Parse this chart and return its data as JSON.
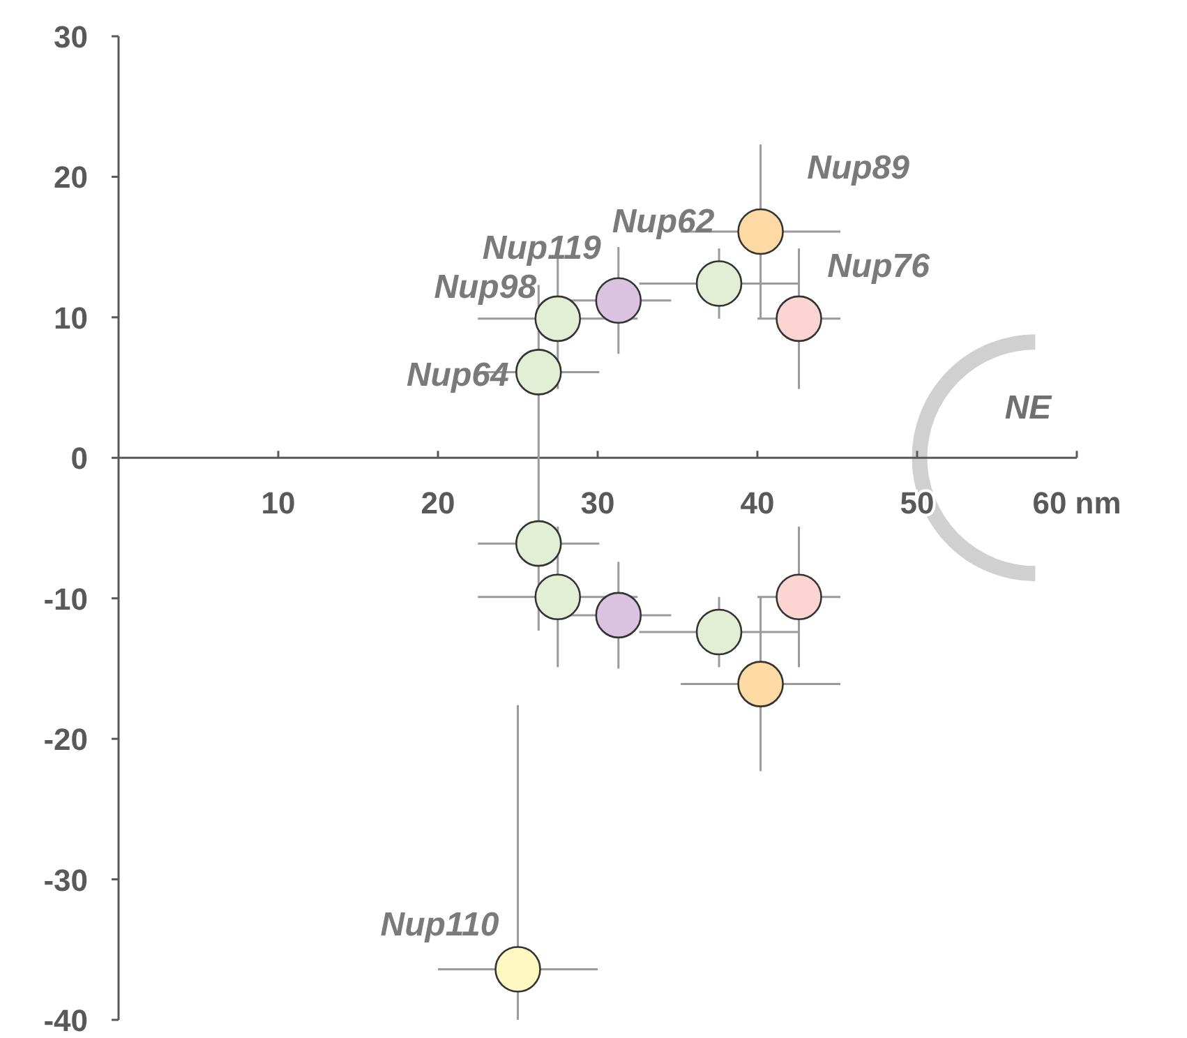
{
  "chart_data": {
    "type": "scatter",
    "xlim": [
      0,
      60
    ],
    "ylim": [
      -40,
      30
    ],
    "xticks": [
      10,
      20,
      30,
      40,
      50,
      {
        "value": 60,
        "label": "60 nm"
      }
    ],
    "yticks": [
      -40,
      -30,
      -20,
      -10,
      0,
      10,
      20,
      30
    ],
    "grid": false,
    "marker": "circle",
    "annotations": [
      "NE"
    ],
    "series": [
      {
        "name": "Nup64",
        "color": "#e2efd4",
        "x": [
          26.3,
          26.3
        ],
        "values": [
          6.1,
          -6.1
        ],
        "errors": [
          6.2,
          6.2
        ],
        "xerrors": [
          3.8,
          3.8
        ]
      },
      {
        "name": "Nup98",
        "color": "#e2efd4",
        "x": [
          27.5,
          27.5
        ],
        "values": [
          9.9,
          -9.9
        ],
        "errors": [
          5,
          5
        ],
        "xerrors": [
          5,
          5
        ]
      },
      {
        "name": "Nup119",
        "color": "#d9c3e0",
        "x": [
          31.3,
          31.3
        ],
        "values": [
          11.2,
          -11.2
        ],
        "errors": [
          3.8,
          3.8
        ],
        "xerrors": [
          3.3,
          3.3
        ]
      },
      {
        "name": "Nup62",
        "color": "#e2efd4",
        "x": [
          37.6,
          37.6
        ],
        "values": [
          12.4,
          -12.4
        ],
        "errors": [
          2.5,
          2.5
        ],
        "xerrors": [
          5,
          5
        ]
      },
      {
        "name": "Nup89",
        "color": "#fdd9a4",
        "x": [
          40.2,
          40.2
        ],
        "values": [
          16.1,
          -16.1
        ],
        "errors": [
          6.2,
          6.2
        ],
        "xerrors": [
          5,
          5
        ]
      },
      {
        "name": "Nup76",
        "color": "#fcd5d2",
        "x": [
          42.6,
          42.6
        ],
        "values": [
          9.9,
          -9.9
        ],
        "errors": [
          5,
          5
        ],
        "xerrors": [
          2.6,
          2.6
        ]
      },
      {
        "name": "Nup110",
        "color": "#fff8c2",
        "x": [
          25.0
        ],
        "values": [
          -36.4
        ],
        "errors": [
          [
            -40,
            -17.6
          ]
        ],
        "xerrors": [
          5
        ]
      }
    ]
  }
}
